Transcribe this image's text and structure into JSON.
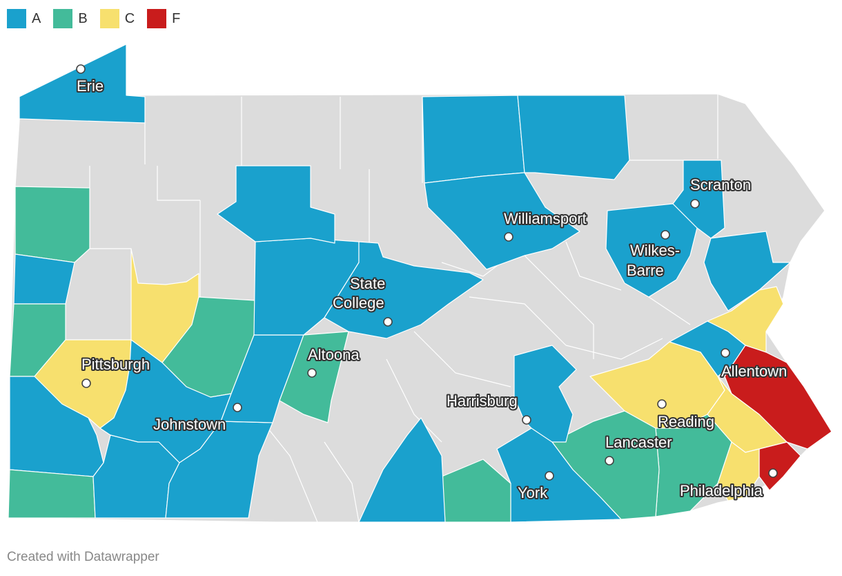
{
  "legend": {
    "items": [
      {
        "label": "A",
        "color": "#1aa1cd"
      },
      {
        "label": "B",
        "color": "#43bb9a"
      },
      {
        "label": "C",
        "color": "#f7e06e"
      },
      {
        "label": "F",
        "color": "#c91c1c"
      }
    ]
  },
  "colors": {
    "A": "#1aa1cd",
    "B": "#43bb9a",
    "C": "#f7e06e",
    "F": "#c91c1c",
    "none": "#dcdcdc"
  },
  "cities": {
    "erie": "Erie",
    "scranton": "Scranton",
    "williamsport": "Williamsport",
    "wilkes_barre_1": "Wilkes-",
    "wilkes_barre_2": "Barre",
    "state_college_1": "State",
    "state_college_2": "College",
    "pittsburgh": "Pittsburgh",
    "altoona": "Altoona",
    "allentown": "Allentown",
    "johnstown": "Johnstown",
    "harrisburg": "Harrisburg",
    "reading": "Reading",
    "lancaster": "Lancaster",
    "york": "York",
    "philadelphia": "Philadelphia"
  },
  "footer": "Created with Datawrapper"
}
